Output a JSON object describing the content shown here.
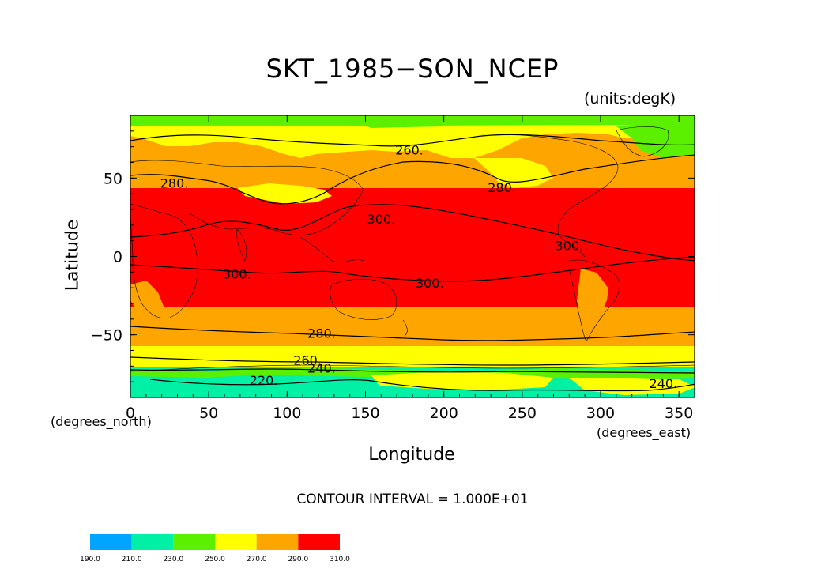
{
  "chart_data": {
    "type": "heatmap",
    "title": "SKT_1985−SON_NCEP",
    "units_label": "(units:degK)",
    "xlabel": "Longitude",
    "ylabel": "Latitude",
    "x_units": "(degrees_east)",
    "y_units": "(degrees_north)",
    "xlim": [
      0,
      360
    ],
    "ylim": [
      -90,
      90
    ],
    "x_ticks": [
      0,
      50,
      100,
      150,
      200,
      250,
      300,
      350
    ],
    "y_ticks": [
      -50,
      0,
      50
    ],
    "contour_interval": "CONTOUR INTERVAL = 1.000E+01",
    "contour_labels": [
      {
        "text": "260.",
        "lon": 178,
        "lat": 68
      },
      {
        "text": "280.",
        "lon": 28,
        "lat": 47
      },
      {
        "text": "280.",
        "lon": 237,
        "lat": 44
      },
      {
        "text": "300.",
        "lon": 160,
        "lat": 24
      },
      {
        "text": "300.",
        "lon": 280,
        "lat": 7
      },
      {
        "text": "300.",
        "lon": 68,
        "lat": -11
      },
      {
        "text": "300.",
        "lon": 191,
        "lat": -17
      },
      {
        "text": "280.",
        "lon": 122,
        "lat": -49
      },
      {
        "text": "260.",
        "lon": 113,
        "lat": -66
      },
      {
        "text": "240.",
        "lon": 122,
        "lat": -71
      },
      {
        "text": "220.",
        "lon": 85,
        "lat": -79
      },
      {
        "text": "240.",
        "lon": 340,
        "lat": -81
      }
    ],
    "bands": [
      {
        "from_lat": 90,
        "to_lat": 84,
        "value_range": "250-270"
      },
      {
        "from_lat": 84,
        "to_lat": 40,
        "value_range": "270-290 / 250-290 (land)"
      },
      {
        "from_lat": 40,
        "to_lat": -37,
        "value_range": "290-310"
      },
      {
        "from_lat": -37,
        "to_lat": -58,
        "value_range": "270-290"
      },
      {
        "from_lat": -58,
        "to_lat": -66,
        "value_range": "250-270"
      },
      {
        "from_lat": -66,
        "to_lat": -72,
        "value_range": "230-250"
      },
      {
        "from_lat": -72,
        "to_lat": -90,
        "value_range": "210-230"
      }
    ],
    "colorbar": {
      "levels": [
        "190.0",
        "210.0",
        "230.0",
        "250.0",
        "270.0",
        "290.0",
        "310.0"
      ],
      "colors": [
        "#00a5ff",
        "#00f0a5",
        "#5af000",
        "#ffff00",
        "#ffa500",
        "#ff0000"
      ]
    }
  }
}
